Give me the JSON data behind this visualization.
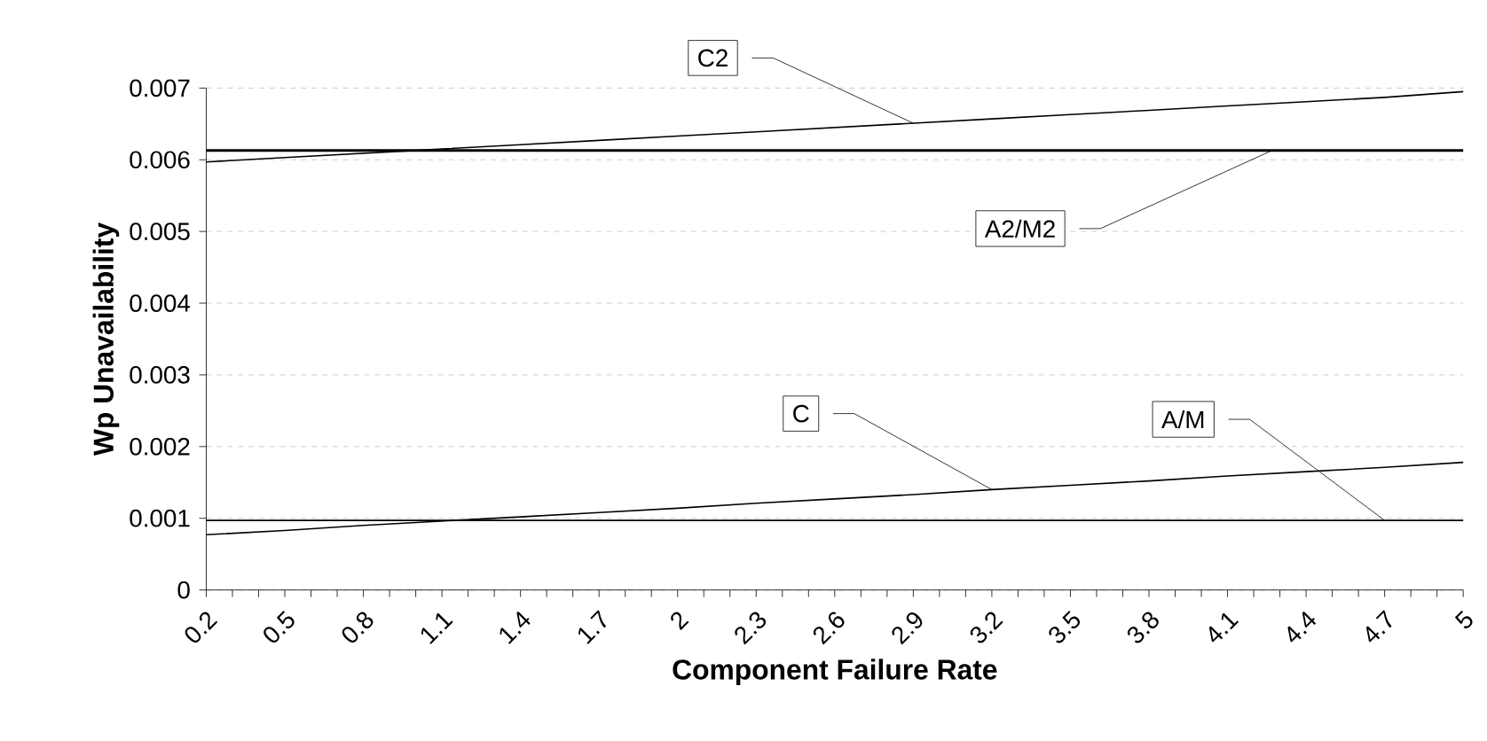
{
  "chart_data": {
    "type": "line",
    "xlabel": "Component Failure Rate",
    "ylabel": "Wp Unavailability",
    "xlim": [
      0.2,
      5
    ],
    "xticks": [
      0.2,
      0.5,
      0.8,
      1.1,
      1.4,
      1.7,
      2,
      2.3,
      2.6,
      2.9,
      3.2,
      3.5,
      3.8,
      4.1,
      4.4,
      4.7,
      5
    ],
    "ylim": [
      0,
      0.007
    ],
    "yticks": [
      0,
      0.001,
      0.002,
      0.003,
      0.004,
      0.005,
      0.006,
      0.007
    ],
    "grid": "y",
    "marker": "none",
    "series": [
      {
        "name": "C2",
        "color": "#000000",
        "x": [
          0.2,
          0.5,
          0.8,
          1.1,
          1.4,
          1.7,
          2,
          2.3,
          2.6,
          2.9,
          3.2,
          3.5,
          3.8,
          4.1,
          4.4,
          4.7,
          5
        ],
        "values": [
          0.00597,
          0.00603,
          0.00609,
          0.00615,
          0.00621,
          0.00627,
          0.00633,
          0.00639,
          0.00645,
          0.00651,
          0.00657,
          0.00663,
          0.00669,
          0.00675,
          0.00681,
          0.00687,
          0.00695
        ]
      },
      {
        "name": "A2/M2",
        "color": "#000000",
        "x": [
          0.2,
          5
        ],
        "values": [
          0.00613,
          0.00613
        ]
      },
      {
        "name": "C",
        "color": "#000000",
        "x": [
          0.2,
          0.5,
          0.8,
          1.1,
          1.4,
          1.7,
          2,
          2.3,
          2.6,
          2.9,
          3.2,
          3.5,
          3.8,
          4.1,
          4.4,
          4.7,
          5
        ],
        "values": [
          0.00077,
          0.00083,
          0.0009,
          0.00096,
          0.00102,
          0.00108,
          0.00114,
          0.00121,
          0.00127,
          0.00133,
          0.0014,
          0.00146,
          0.00152,
          0.00159,
          0.00165,
          0.00171,
          0.00178
        ]
      },
      {
        "name": "A/M",
        "color": "#000000",
        "x": [
          0.2,
          5
        ],
        "values": [
          0.00097,
          0.00097
        ]
      }
    ]
  }
}
